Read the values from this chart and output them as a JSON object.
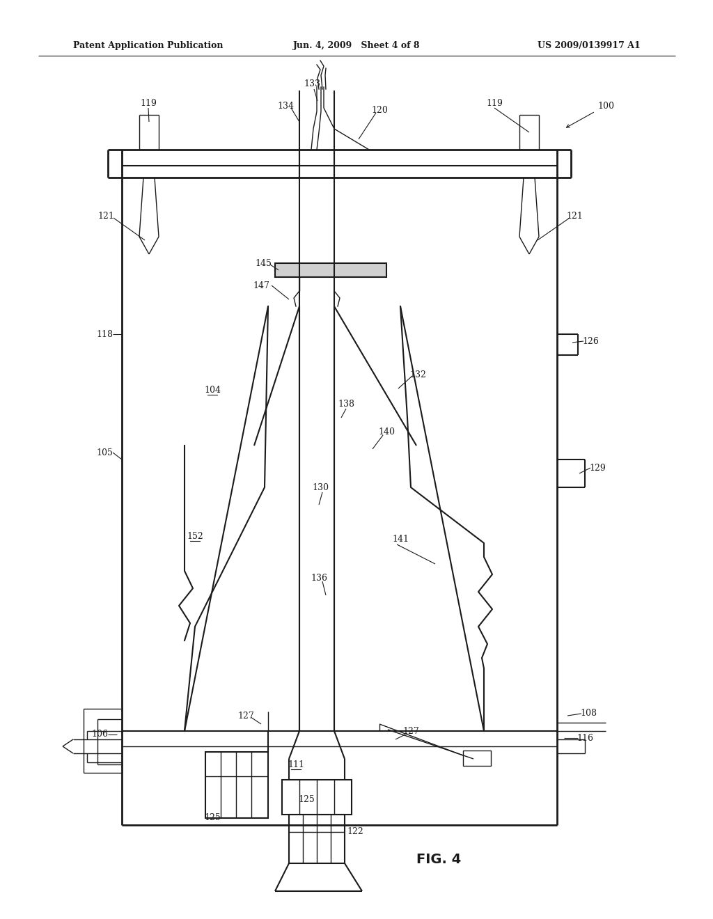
{
  "title_left": "Patent Application Publication",
  "title_center": "Jun. 4, 2009   Sheet 4 of 8",
  "title_right": "US 2009/0139917 A1",
  "fig_label": "FIG. 4",
  "background_color": "#ffffff",
  "line_color": "#1a1a1a"
}
